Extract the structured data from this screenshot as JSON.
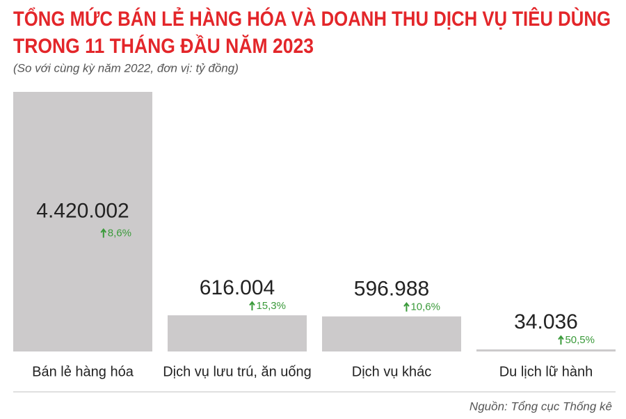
{
  "chart_data": {
    "type": "bar",
    "title": [
      "TỔNG MỨC BÁN LẺ HÀNG HÓA VÀ DOANH THU DỊCH VỤ TIÊU DÙNG",
      "TRONG 11 THÁNG ĐẦU NĂM 2023"
    ],
    "subtitle": "(So với cùng kỳ năm 2022, đơn vị: tỷ đồng)",
    "categories": [
      "Bán lẻ hàng hóa",
      "Dịch vụ lưu trú, ăn uống",
      "Dịch vụ khác",
      "Du lịch lữ hành"
    ],
    "values": [
      4420002,
      616004,
      596988,
      34036
    ],
    "value_labels": [
      "4.420.002",
      "616.004",
      "596.988",
      "34.036"
    ],
    "color": "#cccacb",
    "growth": {
      "values": [
        8.6,
        15.3,
        10.6,
        50.5
      ],
      "value_labels": [
        "8,6%",
        "15,3%",
        "10,6%",
        "50,5%"
      ],
      "color": "#3a9a3a"
    },
    "ylim": [
      0,
      4420002
    ],
    "source": "Nguồn: Tổng cục Thống kê"
  }
}
